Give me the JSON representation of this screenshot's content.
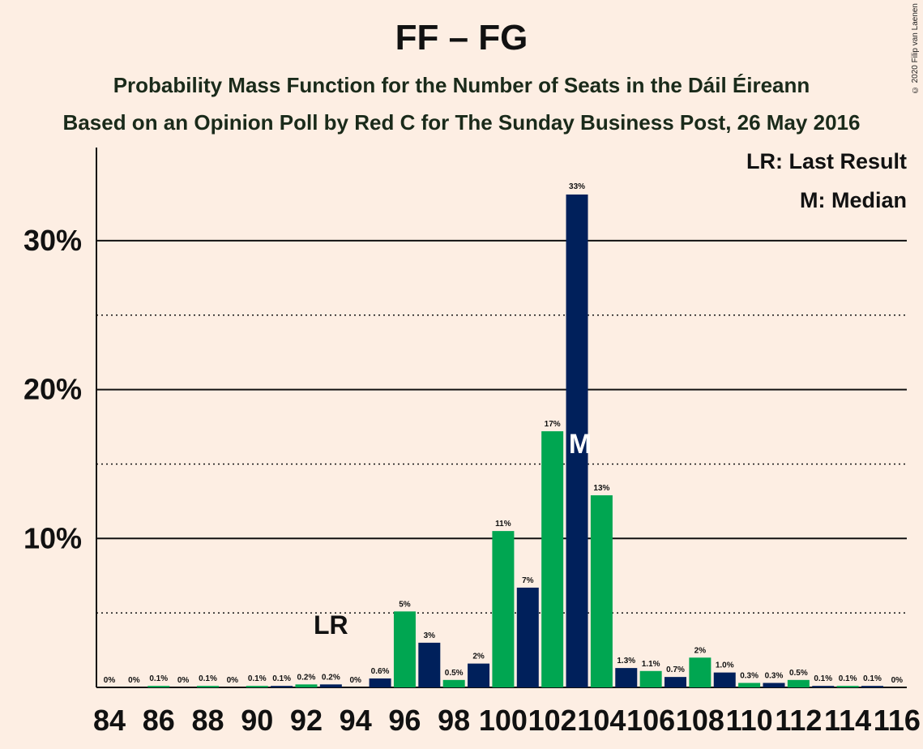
{
  "chart_data": {
    "type": "bar",
    "title": "FF – FG",
    "subtitle": "Probability Mass Function for the Number of Seats in the Dáil Éireann",
    "subtitle2": "Based on an Opinion Poll by Red C for The Sunday Business Post, 26 May 2016",
    "copyright": "© 2020 Filip van Laenen",
    "legend": {
      "last_result": "LR: Last Result",
      "median": "M: Median"
    },
    "x": [
      84,
      85,
      86,
      87,
      88,
      89,
      90,
      91,
      92,
      93,
      94,
      95,
      96,
      97,
      98,
      99,
      100,
      101,
      102,
      103,
      104,
      105,
      106,
      107,
      108,
      109,
      110,
      111,
      112,
      113,
      114,
      115,
      116
    ],
    "values": [
      0,
      0,
      0.1,
      0,
      0.1,
      0,
      0.1,
      0.1,
      0.2,
      0.2,
      0,
      0.6,
      5.1,
      3.0,
      0.5,
      1.6,
      10.5,
      6.7,
      17.2,
      33.1,
      12.9,
      1.3,
      1.1,
      0.7,
      2.0,
      1.0,
      0.3,
      0.3,
      0.5,
      0.1,
      0.1,
      0.1,
      0
    ],
    "labels": [
      "0%",
      "0%",
      "0.1%",
      "0%",
      "0.1%",
      "0%",
      "0.1%",
      "0.1%",
      "0.2%",
      "0.2%",
      "0%",
      "0.6%",
      "5%",
      "3%",
      "0.5%",
      "2%",
      "11%",
      "7%",
      "17%",
      "33%",
      "13%",
      "1.3%",
      "1.1%",
      "0.7%",
      "2%",
      "1.0%",
      "0.3%",
      "0.3%",
      "0.5%",
      "0.1%",
      "0.1%",
      "0.1%",
      "0%"
    ],
    "x_tick_labels": [
      "84",
      "86",
      "88",
      "90",
      "92",
      "94",
      "96",
      "98",
      "100",
      "102",
      "104",
      "106",
      "108",
      "110",
      "112",
      "114",
      "116"
    ],
    "y_tick_labels": [
      "10%",
      "20%",
      "30%"
    ],
    "y_ticks": [
      10,
      20,
      30
    ],
    "ylim": [
      0,
      36
    ],
    "last_result_seat": 93,
    "last_result_label": "LR",
    "median_seat": 103,
    "median_label": "M",
    "colors": {
      "green": "#00a651",
      "navy": "#00205b",
      "background": "#fdeee3"
    }
  }
}
